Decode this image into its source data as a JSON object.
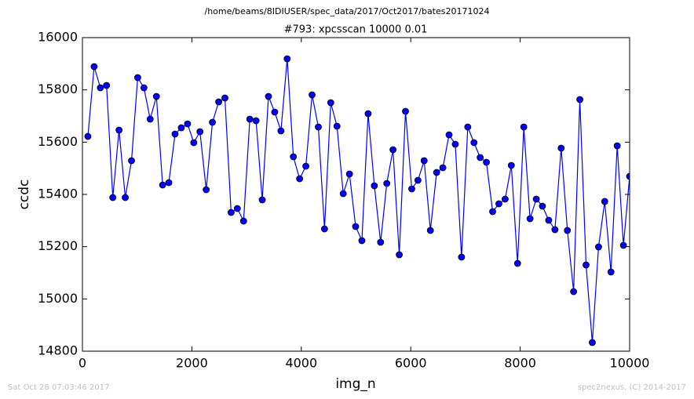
{
  "chart_data": {
    "type": "line",
    "suptitle": "/home/beams/8IDIUSER/spec_data/2017/Oct2017/bates20171024",
    "title": "#793: xpcsscan 10000 0.01",
    "xlabel": "img_n",
    "ylabel": "ccdc",
    "timestamp": "Sat Oct 28 07:03:46 2017",
    "credit": "spec2nexus, (C) 2014-2017",
    "x": [
      100,
      214,
      328,
      441,
      555,
      669,
      783,
      897,
      1010,
      1124,
      1238,
      1352,
      1466,
      1579,
      1693,
      1807,
      1921,
      2035,
      2148,
      2262,
      2376,
      2490,
      2604,
      2717,
      2831,
      2945,
      3059,
      3173,
      3286,
      3400,
      3514,
      3628,
      3742,
      3855,
      3969,
      4083,
      4197,
      4311,
      4424,
      4538,
      4652,
      4766,
      4880,
      4993,
      5107,
      5221,
      5335,
      5449,
      5562,
      5676,
      5790,
      5904,
      6018,
      6131,
      6245,
      6359,
      6473,
      6587,
      6700,
      6814,
      6928,
      7042,
      7156,
      7269,
      7383,
      7497,
      7611,
      7725,
      7838,
      7952,
      8066,
      8180,
      8294,
      8407,
      8521,
      8635,
      8749,
      8863,
      8976,
      9090,
      9204,
      9318,
      9432,
      9545,
      9659,
      9773,
      9887,
      10000
    ],
    "series": [
      {
        "name": "ccdc",
        "color": "#0000ff",
        "values": [
          15622,
          15889,
          15808,
          15817,
          15388,
          15646,
          15388,
          15529,
          15847,
          15808,
          15688,
          15775,
          15436,
          15445,
          15631,
          15655,
          15670,
          15598,
          15640,
          15418,
          15676,
          15754,
          15769,
          15331,
          15346,
          15298,
          15688,
          15682,
          15379,
          15775,
          15715,
          15643,
          15919,
          15544,
          15460,
          15508,
          15781,
          15658,
          15268,
          15751,
          15661,
          15403,
          15478,
          15277,
          15223,
          15709,
          15433,
          15217,
          15442,
          15571,
          15169,
          15718,
          15421,
          15454,
          15529,
          15262,
          15484,
          15502,
          15628,
          15592,
          15160,
          15658,
          15598,
          15541,
          15523,
          15334,
          15364,
          15382,
          15511,
          15136,
          15658,
          15307,
          15382,
          15355,
          15301,
          15265,
          15577,
          15262,
          15028,
          15763,
          15130,
          14833,
          15199,
          15373,
          15103,
          15586,
          15205,
          15469
        ]
      }
    ],
    "xlim": [
      0,
      10000
    ],
    "xticks": [
      0,
      2000,
      4000,
      6000,
      8000,
      10000
    ],
    "ylim": [
      14800,
      16000
    ],
    "yticks": [
      14800,
      15000,
      15200,
      15400,
      15600,
      15800,
      16000
    ],
    "grid": false
  }
}
